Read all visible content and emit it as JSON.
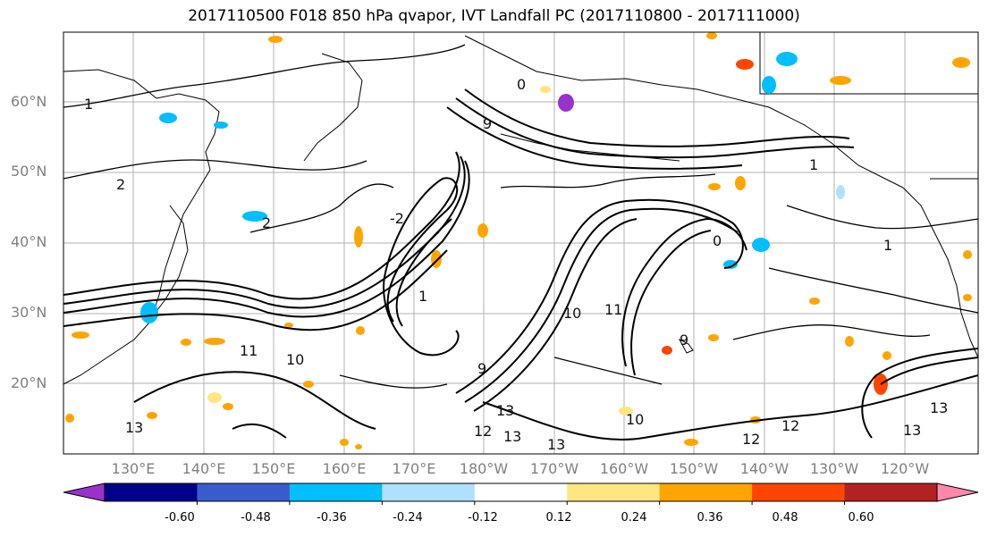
{
  "title": "2017110500 F018 850 hPa qvapor, IVT Landfall PC (2017110800 - 2017111000)",
  "lat_labels": [
    "60°N",
    "50°N",
    "40°N",
    "30°N",
    "20°N"
  ],
  "lon_labels": [
    "130°E",
    "140°E",
    "150°E",
    "160°E",
    "170°E",
    "180°W",
    "170°W",
    "160°W",
    "150°W",
    "140°W",
    "130°W",
    "120°W"
  ],
  "colorbar": {
    "colors": [
      "#9932CC",
      "#00008B",
      "#3A5BCC",
      "#00BFFF",
      "#B0E0FF",
      "#FFFFFF",
      "#FFE680",
      "#FFA500",
      "#FF4500",
      "#B22222",
      "#FF88AA"
    ],
    "tick_labels": [
      "-0.60",
      "-0.48",
      "-0.36",
      "-0.24",
      "-0.12",
      "0.12",
      "0.24",
      "0.36",
      "0.48",
      "0.60"
    ]
  },
  "contour_labels": [
    "1",
    "0",
    "9",
    "1",
    "2",
    "2",
    "-2",
    "1",
    "0",
    "10",
    "11",
    "9",
    "10",
    "11",
    "9",
    "13",
    "12",
    "13",
    "13",
    "13",
    "12",
    "10",
    "1",
    "13",
    "13",
    "12"
  ],
  "anomaly_colors": {
    "orange": "#FFA500",
    "light_orange": "#FFE680",
    "red": "#FF4500",
    "light_blue": "#B0E0FF",
    "blue": "#00BFFF",
    "purple": "#9932CC"
  }
}
